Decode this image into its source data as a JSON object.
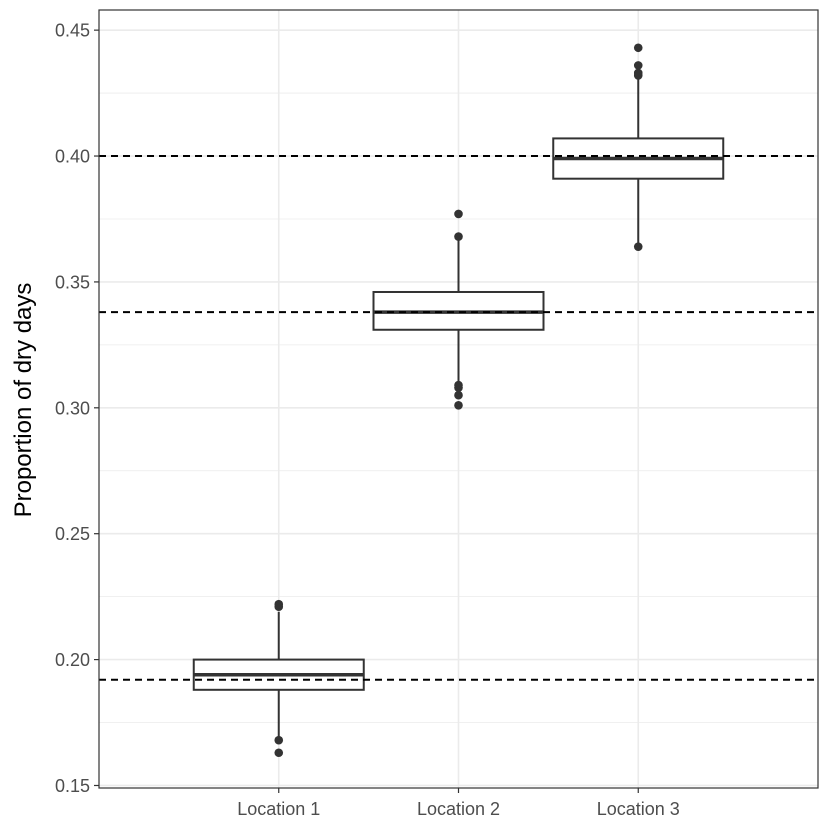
{
  "chart_data": {
    "type": "box",
    "title": "",
    "xlabel": "",
    "ylabel": "Proportion of dry days",
    "ylim": [
      0.149,
      0.458
    ],
    "y_ticks": [
      0.15,
      0.2,
      0.25,
      0.3,
      0.35,
      0.4,
      0.45
    ],
    "y_tick_labels": [
      "0.15",
      "0.20",
      "0.25",
      "0.30",
      "0.35",
      "0.40",
      "0.45"
    ],
    "categories": [
      "Location 1",
      "Location 2",
      "Location 3"
    ],
    "grid": true,
    "legend": "none",
    "boxes": [
      {
        "category": "Location 1",
        "whisker_low": 0.169,
        "q1": 0.188,
        "median": 0.194,
        "q3": 0.2,
        "whisker_high": 0.219,
        "outliers": [
          0.163,
          0.168,
          0.221,
          0.222
        ]
      },
      {
        "category": "Location 2",
        "whisker_low": 0.31,
        "q1": 0.331,
        "median": 0.338,
        "q3": 0.346,
        "whisker_high": 0.368,
        "outliers": [
          0.301,
          0.305,
          0.308,
          0.309,
          0.368,
          0.377
        ]
      },
      {
        "category": "Location 3",
        "whisker_low": 0.364,
        "q1": 0.391,
        "median": 0.399,
        "q3": 0.407,
        "whisker_high": 0.432,
        "outliers": [
          0.364,
          0.432,
          0.433,
          0.436,
          0.443
        ]
      }
    ],
    "reference_lines": [
      0.192,
      0.338,
      0.4
    ],
    "colors": {
      "box_stroke": "#333333",
      "box_fill": "#ffffff",
      "grid": "#ebebeb",
      "panel_border": "#333333",
      "reference_line": "#000000"
    }
  }
}
